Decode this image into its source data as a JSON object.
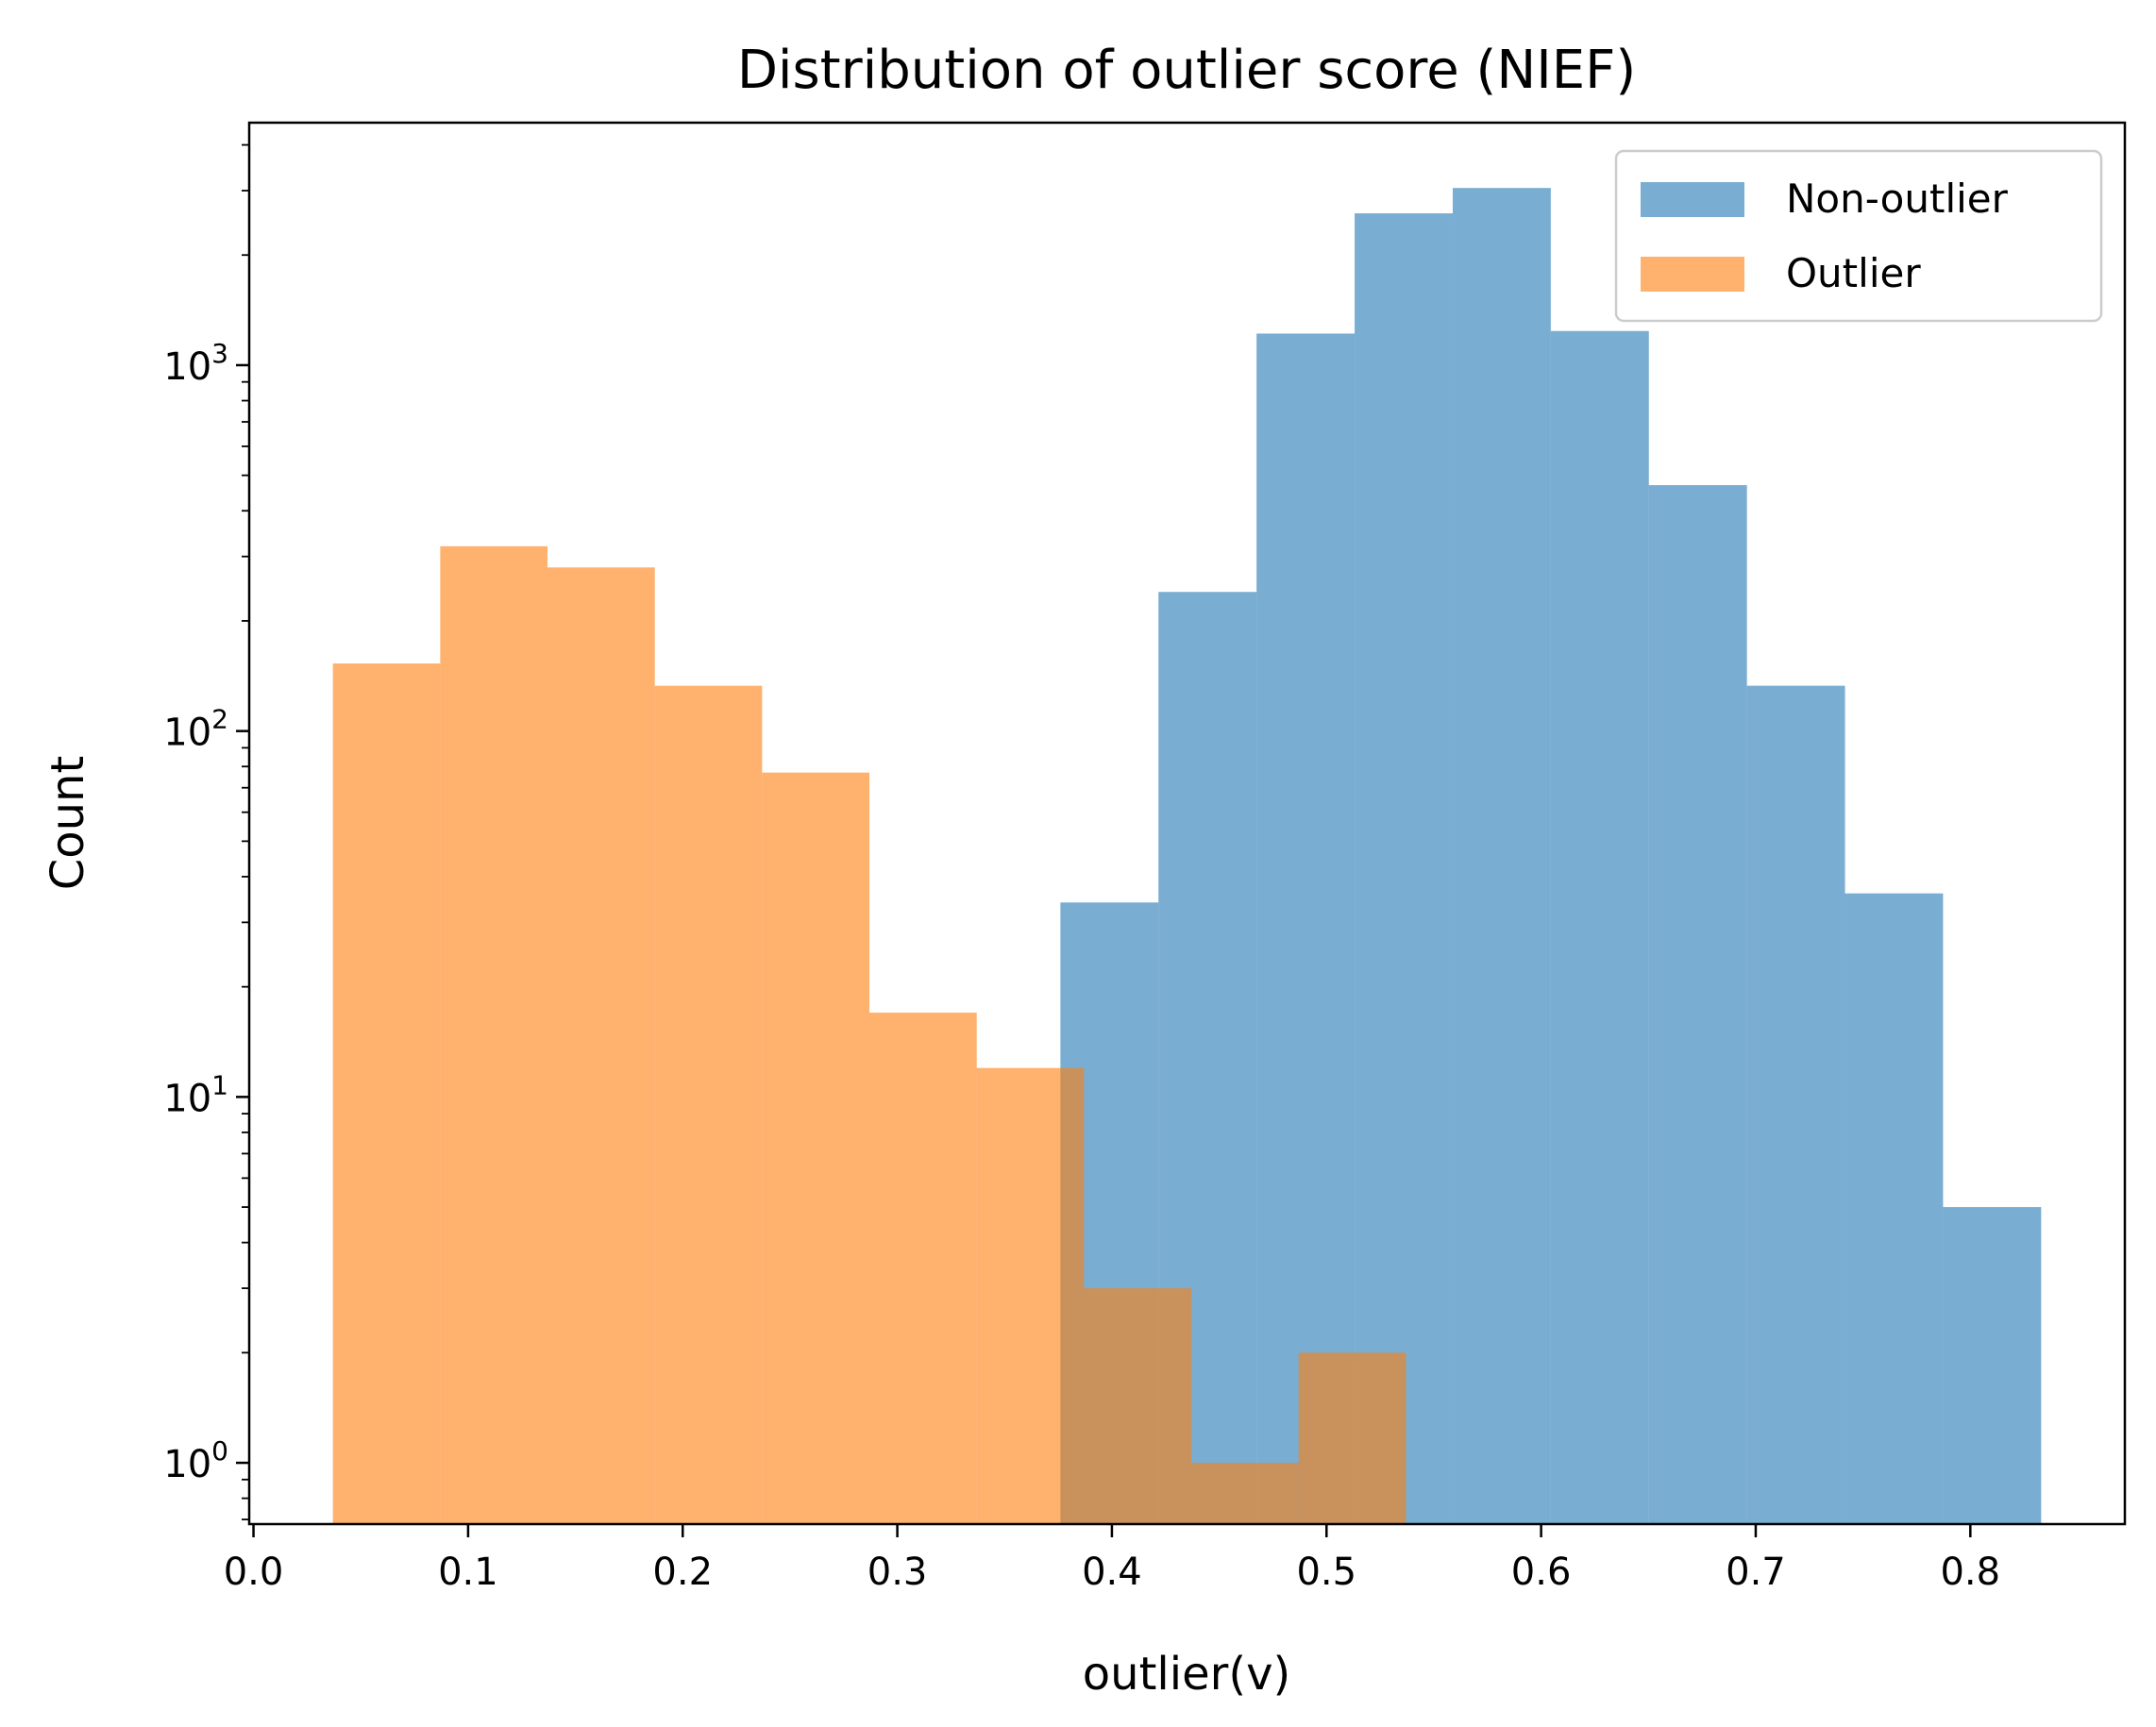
{
  "chart_data": {
    "type": "bar",
    "subtype": "histogram",
    "title": "Distribution of outlier score (NIEF)",
    "xlabel": "outlier(v)",
    "ylabel": "Count",
    "xlim": [
      -0.002,
      0.872
    ],
    "ylim": [
      0.68,
      4600
    ],
    "yscale": "log",
    "grid": false,
    "legend_position": "top-right",
    "x_ticks": [
      {
        "value": 0.0,
        "label": "0.0"
      },
      {
        "value": 0.1,
        "label": "0.1"
      },
      {
        "value": 0.2,
        "label": "0.2"
      },
      {
        "value": 0.3,
        "label": "0.3"
      },
      {
        "value": 0.4,
        "label": "0.4"
      },
      {
        "value": 0.5,
        "label": "0.5"
      },
      {
        "value": 0.6,
        "label": "0.6"
      },
      {
        "value": 0.7,
        "label": "0.7"
      },
      {
        "value": 0.8,
        "label": "0.8"
      }
    ],
    "y_ticks": [
      {
        "value": 1,
        "base": "10",
        "exp": "0"
      },
      {
        "value": 10,
        "base": "10",
        "exp": "1"
      },
      {
        "value": 100,
        "base": "10",
        "exp": "2"
      },
      {
        "value": 1000,
        "base": "10",
        "exp": "3"
      }
    ],
    "series": [
      {
        "name": "Non-outlier",
        "color": "#1f77b4",
        "opacity": 0.6,
        "bins": [
          0.376,
          0.4217,
          0.4674,
          0.5131,
          0.5588,
          0.6045,
          0.6502,
          0.6959,
          0.7416,
          0.7873,
          0.833
        ],
        "counts": [
          34,
          240,
          1220,
          2600,
          3050,
          1240,
          470,
          133,
          36,
          5
        ]
      },
      {
        "name": "Outlier",
        "color": "#ff7f0e",
        "opacity": 0.6,
        "bins": [
          0.037,
          0.087,
          0.137,
          0.187,
          0.237,
          0.287,
          0.337,
          0.387,
          0.437,
          0.487,
          0.537
        ],
        "counts": [
          153,
          320,
          280,
          133,
          77,
          17,
          12,
          3,
          1,
          2
        ]
      }
    ]
  }
}
